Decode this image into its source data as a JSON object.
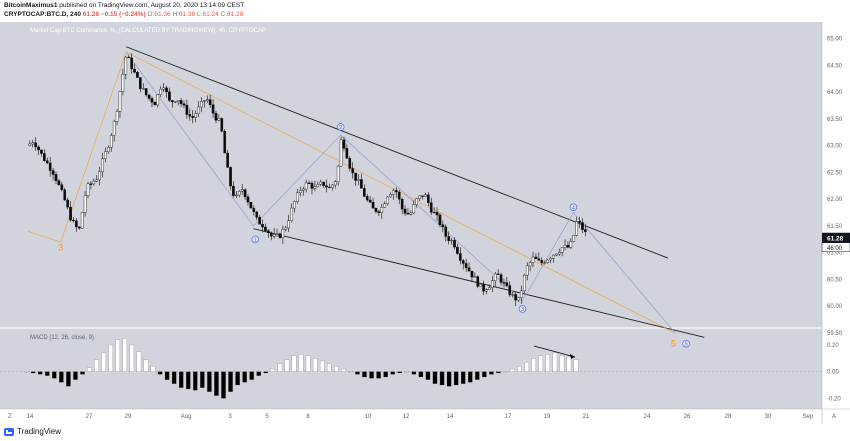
{
  "header": {
    "author": "BitcoinMaximus1",
    "published": "published on TradingView.com, August 20, 2020 13:14:09 CEST",
    "symbol": "CRYPTOCAP:BTC.D, 240",
    "last": "61.28",
    "change": "−0.15 (−0.24%)",
    "o_label": "O:",
    "o_value": "61.36",
    "h_label": "H:",
    "h_value": "61.38",
    "l_label": "L:",
    "l_value": "61.24",
    "c_label": "C:",
    "c_value": "61.28"
  },
  "chart_data": [
    {
      "type": "candlestick",
      "title": "Market Cap BTC Dominance, %, (CALCULATED BY TRADINGVIEW), 4h, CRYPTOCAP",
      "ylim": [
        59.5,
        65.2
      ],
      "y_ticks": [
        "65.00",
        "64.50",
        "64.00",
        "63.50",
        "63.00",
        "62.50",
        "62.00",
        "61.50",
        "61.00",
        "60.50",
        "60.00",
        "59.50"
      ],
      "x_ticks": [
        "14",
        "27",
        "29",
        "Aug",
        "3",
        "5",
        "8",
        "10",
        "12",
        "14",
        "17",
        "19",
        "21",
        "24",
        "26",
        "28",
        "30",
        "Sep"
      ],
      "last_price_label": "61.28",
      "countdown_label": "46:00",
      "price_path": [
        [
          0,
          63.0
        ],
        [
          3,
          63.1
        ],
        [
          8,
          62.8
        ],
        [
          14,
          62.5
        ],
        [
          20,
          62.0
        ],
        [
          24,
          61.6
        ],
        [
          28,
          61.4
        ],
        [
          32,
          62.2
        ],
        [
          38,
          62.4
        ],
        [
          44,
          63.0
        ],
        [
          48,
          63.5
        ],
        [
          52,
          64.3
        ],
        [
          54,
          64.7
        ],
        [
          58,
          64.4
        ],
        [
          62,
          64.1
        ],
        [
          66,
          63.9
        ],
        [
          70,
          63.8
        ],
        [
          74,
          64.2
        ],
        [
          78,
          63.8
        ],
        [
          82,
          63.9
        ],
        [
          86,
          63.7
        ],
        [
          90,
          63.5
        ],
        [
          94,
          63.7
        ],
        [
          98,
          63.9
        ],
        [
          102,
          63.6
        ],
        [
          106,
          63.4
        ],
        [
          108,
          62.9
        ],
        [
          111,
          62.3
        ],
        [
          114,
          62.0
        ],
        [
          118,
          62.2
        ],
        [
          122,
          61.9
        ],
        [
          126,
          61.6
        ],
        [
          130,
          61.5
        ],
        [
          134,
          61.3
        ],
        [
          138,
          61.3
        ],
        [
          142,
          61.5
        ],
        [
          146,
          61.9
        ],
        [
          150,
          62.2
        ],
        [
          154,
          62.3
        ],
        [
          158,
          62.2
        ],
        [
          162,
          62.3
        ],
        [
          166,
          62.2
        ],
        [
          170,
          62.4
        ],
        [
          172,
          63.1
        ],
        [
          174,
          63.0
        ],
        [
          178,
          62.5
        ],
        [
          182,
          62.3
        ],
        [
          186,
          62.0
        ],
        [
          190,
          61.8
        ],
        [
          194,
          61.8
        ],
        [
          198,
          62.1
        ],
        [
          202,
          62.2
        ],
        [
          206,
          61.8
        ],
        [
          210,
          61.7
        ],
        [
          214,
          62.0
        ],
        [
          218,
          62.1
        ],
        [
          222,
          61.8
        ],
        [
          226,
          61.6
        ],
        [
          230,
          61.3
        ],
        [
          234,
          61.2
        ],
        [
          238,
          60.9
        ],
        [
          242,
          60.7
        ],
        [
          246,
          60.5
        ],
        [
          250,
          60.3
        ],
        [
          254,
          60.4
        ],
        [
          258,
          60.6
        ],
        [
          262,
          60.4
        ],
        [
          266,
          60.2
        ],
        [
          270,
          60.1
        ],
        [
          272,
          60.4
        ],
        [
          274,
          60.7
        ],
        [
          278,
          60.9
        ],
        [
          282,
          60.8
        ],
        [
          286,
          60.9
        ],
        [
          290,
          61.0
        ],
        [
          294,
          61.1
        ],
        [
          298,
          61.1
        ],
        [
          300,
          61.3
        ],
        [
          302,
          61.6
        ],
        [
          304,
          61.5
        ],
        [
          306,
          61.4
        ],
        [
          308,
          61.28
        ]
      ],
      "wave_labels": [
        {
          "label": "3",
          "x": 18,
          "y": 61.1,
          "style": "orange"
        },
        {
          "label": "1",
          "x": 125,
          "y": 61.25,
          "style": "circle"
        },
        {
          "label": "2",
          "x": 172,
          "y": 63.35,
          "style": "circle"
        },
        {
          "label": "3",
          "x": 272,
          "y": 59.95,
          "style": "circle"
        },
        {
          "label": "4",
          "x": 300,
          "y": 61.85,
          "style": "circle"
        },
        {
          "label": "5",
          "x": 355,
          "y": 59.3,
          "style": "orange"
        },
        {
          "label": "5",
          "x": 362,
          "y": 59.3,
          "style": "circle"
        }
      ],
      "channel": [
        {
          "from": [
            54,
            64.85
          ],
          "to": [
            352,
            60.9
          ]
        },
        {
          "from": [
            124,
            61.45
          ],
          "to": [
            372,
            59.42
          ]
        }
      ],
      "wave_path": [
        [
          54,
          64.75
        ],
        [
          124,
          61.5
        ],
        [
          172,
          63.2
        ],
        [
          272,
          60.1
        ],
        [
          300,
          61.75
        ],
        [
          356,
          59.5
        ]
      ],
      "orange_path": [
        [
          0,
          61.4
        ],
        [
          18,
          61.2
        ],
        [
          54,
          64.75
        ],
        [
          356,
          59.5
        ]
      ]
    },
    {
      "type": "histogram",
      "title": "MACD (12, 26, close, 9)",
      "ylim": [
        -0.28,
        0.32
      ],
      "y_ticks": [
        "0.20",
        "0.00",
        "-0.20"
      ],
      "values": [
        0.0,
        -0.01,
        -0.02,
        -0.03,
        -0.05,
        -0.08,
        -0.11,
        -0.06,
        -0.02,
        0.03,
        0.09,
        0.14,
        0.2,
        0.24,
        0.25,
        0.2,
        0.15,
        0.09,
        0.04,
        -0.02,
        -0.06,
        -0.09,
        -0.12,
        -0.13,
        -0.14,
        -0.12,
        -0.15,
        -0.18,
        -0.2,
        -0.15,
        -0.1,
        -0.08,
        -0.06,
        -0.03,
        -0.01,
        0.02,
        0.06,
        0.09,
        0.12,
        0.13,
        0.12,
        0.1,
        0.08,
        0.06,
        0.04,
        0.02,
        0.0,
        -0.02,
        -0.04,
        -0.05,
        -0.05,
        -0.04,
        -0.02,
        -0.01,
        0.0,
        -0.02,
        -0.04,
        -0.06,
        -0.09,
        -0.1,
        -0.11,
        -0.1,
        -0.09,
        -0.08,
        -0.06,
        -0.04,
        -0.02,
        -0.01,
        0.0,
        0.02,
        0.04,
        0.07,
        0.1,
        0.12,
        0.13,
        0.14,
        0.12,
        0.11,
        0.09
      ]
    }
  ],
  "footer": {
    "brand": "TradingView"
  },
  "colors": {
    "pane_bg": "#d1d4dc",
    "candle": "#0b0b0b",
    "channel": "#1f1f1f",
    "wave_line": "#9fa3c8",
    "orange": "#f39c12",
    "circle": "#4a6cd4",
    "last_price_bg": "#131722",
    "macd_pos": "#ffffff",
    "macd_neg": "#000000",
    "axis_text": "#5d606b"
  }
}
